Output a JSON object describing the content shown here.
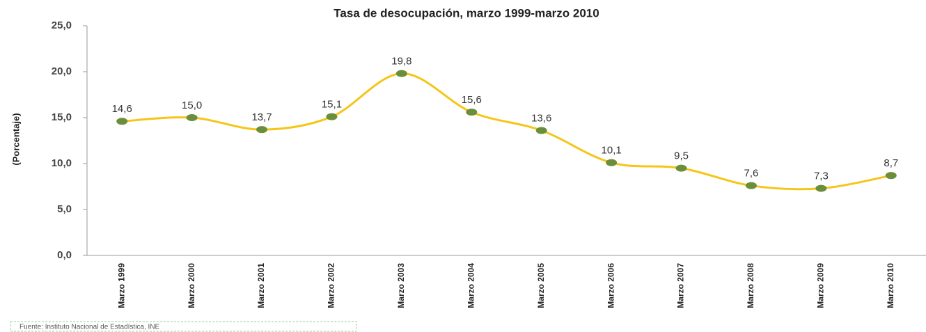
{
  "chart_data": {
    "type": "line",
    "title": "Tasa de desocupación, marzo 1999-marzo 2010",
    "y_label": "(Porcentaje)",
    "categories": [
      "Marzo 1999",
      "Marzo 2000",
      "Marzo 2001",
      "Marzo 2002",
      "Marzo 2003",
      "Marzo 2004",
      "Marzo 2005",
      "Marzo 2006",
      "Marzo 2007",
      "Marzo 2008",
      "Marzo 2009",
      "Marzo 2010"
    ],
    "series": [
      {
        "name": "Tasa de desocupación",
        "color": "#f5c518",
        "marker_color": "#6b8e3a",
        "values": [
          14.6,
          15.0,
          13.7,
          15.1,
          19.8,
          15.6,
          13.6,
          10.1,
          9.5,
          7.6,
          7.3,
          8.7
        ],
        "value_labels": [
          "14,6",
          "15,0",
          "13,7",
          "15,1",
          "19,8",
          "15,6",
          "13,6",
          "10,1",
          "9,5",
          "7,6",
          "7,3",
          "8,7"
        ]
      }
    ],
    "ylim": [
      0,
      25
    ],
    "yticks": [
      {
        "value": 0,
        "label": "0,0"
      },
      {
        "value": 5,
        "label": "5,0"
      },
      {
        "value": 10,
        "label": "10,0"
      },
      {
        "value": 15,
        "label": "15,0"
      },
      {
        "value": 20,
        "label": "20,0"
      },
      {
        "value": 25,
        "label": "25,0"
      }
    ],
    "source": "Fuente: Instituto Nacional de Estadística, INE"
  }
}
